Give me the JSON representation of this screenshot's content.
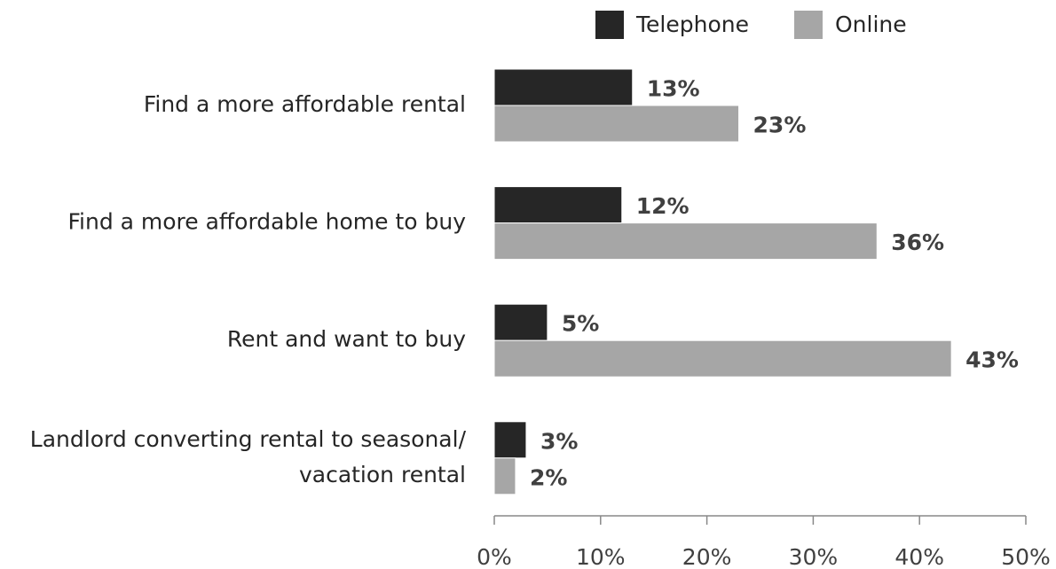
{
  "chart_data": {
    "type": "bar",
    "orientation": "horizontal",
    "categories": [
      "Find a more affordable rental",
      "Find a more affordable home to buy",
      "Rent and want to buy",
      "Landlord converting rental to seasonal/\nvacation rental"
    ],
    "series": [
      {
        "name": "Telephone",
        "color": "#262626",
        "values": [
          13,
          12,
          5,
          3
        ],
        "value_labels": [
          "13%",
          "12%",
          "5%",
          "3%"
        ]
      },
      {
        "name": "Online",
        "color": "#a6a6a6",
        "values": [
          23,
          36,
          43,
          2
        ],
        "value_labels": [
          "23%",
          "36%",
          "43%",
          "2%"
        ]
      }
    ],
    "xlim": [
      0,
      50
    ],
    "xticks": [
      {
        "value": 0,
        "label": "0%"
      },
      {
        "value": 10,
        "label": "10%"
      },
      {
        "value": 20,
        "label": "20%"
      },
      {
        "value": 30,
        "label": "30%"
      },
      {
        "value": 40,
        "label": "40%"
      },
      {
        "value": 50,
        "label": "50%"
      }
    ],
    "legend": "top"
  }
}
